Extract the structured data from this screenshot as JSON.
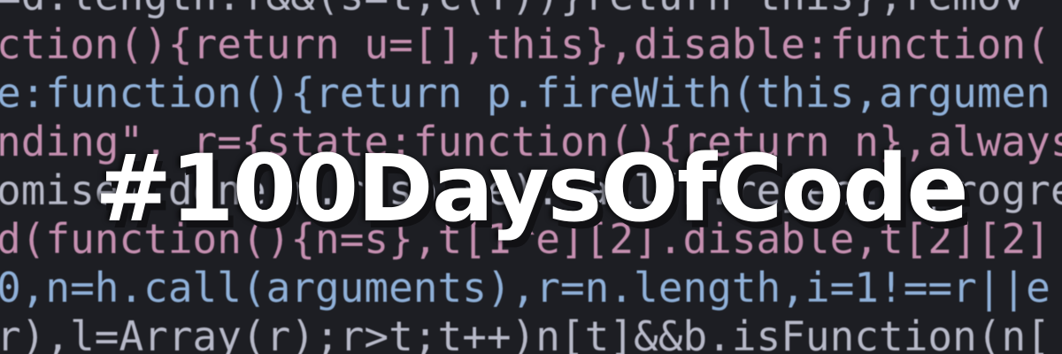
{
  "banner": {
    "title": "#100DaysOfCode",
    "background_code": {
      "lines": [
        "=d.length.f&&(s=t,c(f))}return this},remov",
        "ction(){return u=[],this},disable:function(",
        "e:function(){return p.fireWith(this,argumen",
        "nding\", r={state:function(){return n},always",
        "omise).done(n.resolve).fail(n.reject).progress(n.r",
        "d(function(){n=s},t[1^e][2].disable,t[2][2]",
        "0,n=h.call(arguments),r=n.length,i=1!==r||e",
        "r),l=Array(r);r>t;t++)n[t]&&b.isFunction(n["
      ]
    }
  }
}
